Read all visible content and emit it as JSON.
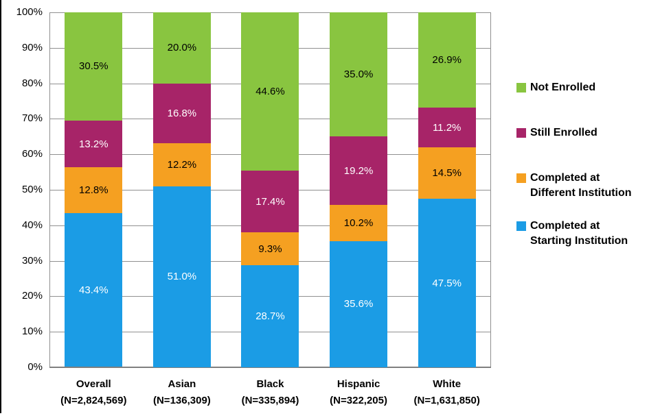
{
  "chart_data": {
    "type": "bar",
    "stacked": true,
    "title": "",
    "xlabel": "",
    "ylabel": "",
    "categories": [
      "Overall",
      "Asian",
      "Black",
      "Hispanic",
      "White"
    ],
    "category_counts": [
      "(N=2,824,569)",
      "(N=136,309)",
      "(N=335,894)",
      "(N=322,205)",
      "(N=1,631,850)"
    ],
    "series": [
      {
        "name": "Completed at Starting Institution",
        "color": "#1B9CE5",
        "label_color": "#FFFFFF",
        "values": [
          43.4,
          51.0,
          28.7,
          35.6,
          47.5
        ]
      },
      {
        "name": "Completed at Different Institution",
        "color": "#F5A021",
        "label_color": "#000000",
        "values": [
          12.8,
          12.2,
          9.3,
          10.2,
          14.5
        ]
      },
      {
        "name": "Still Enrolled",
        "color": "#A72468",
        "label_color": "#FFFFFF",
        "values": [
          13.2,
          16.8,
          17.4,
          19.2,
          11.2
        ]
      },
      {
        "name": "Not Enrolled",
        "color": "#89C540",
        "label_color": "#000000",
        "values": [
          30.5,
          20.0,
          44.6,
          35.0,
          26.9
        ]
      }
    ],
    "value_suffix": "%",
    "ylim": [
      0,
      100
    ],
    "y_tick_labels": [
      "0%",
      "10%",
      "20%",
      "30%",
      "40%",
      "50%",
      "60%",
      "70%",
      "80%",
      "90%",
      "100%"
    ],
    "grid": true,
    "legend_position": "right",
    "legend": [
      {
        "series": "Not Enrolled",
        "lines": [
          "Not Enrolled"
        ]
      },
      {
        "series": "Still Enrolled",
        "lines": [
          "Still Enrolled"
        ]
      },
      {
        "series": "Completed at Different Institution",
        "lines": [
          "Completed at",
          "Different Institution"
        ]
      },
      {
        "series": "Completed at Starting Institution",
        "lines": [
          "Completed at",
          "Starting Institution"
        ]
      }
    ]
  },
  "frame": {
    "left_border_color": "#000000"
  },
  "colors": {
    "gridline": "#8F8F8F",
    "axis": "#7F7F7F",
    "tick_label": "#000000"
  }
}
